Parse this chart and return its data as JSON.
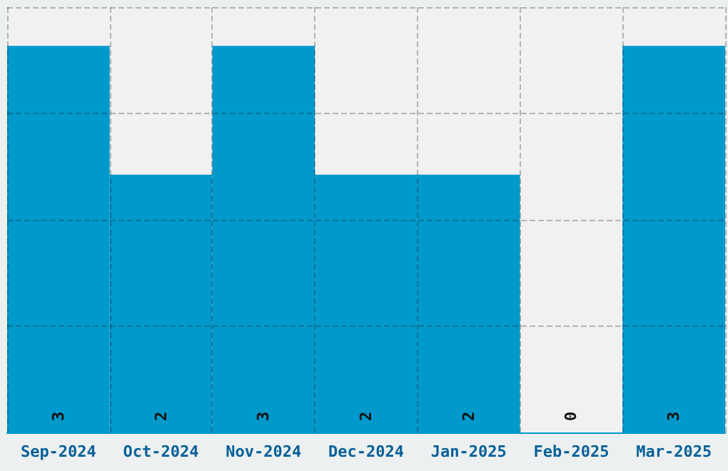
{
  "chart_data": {
    "type": "bar",
    "categories": [
      "Sep-2024",
      "Oct-2024",
      "Nov-2024",
      "Dec-2024",
      "Jan-2025",
      "Feb-2025",
      "Mar-2025"
    ],
    "values": [
      3,
      2,
      3,
      2,
      2,
      0,
      3
    ],
    "color": "#0099cc",
    "ylim": [
      0,
      3.3
    ],
    "yticks": [
      {
        "value": 0,
        "label": null
      },
      {
        "value": 0.825,
        "label": null
      },
      {
        "value": 1.65,
        "label": null
      },
      {
        "value": 2.475,
        "label": null
      },
      {
        "value": 3.3,
        "label": null
      }
    ],
    "tick_labels": "x",
    "grid": true,
    "data_labels": true
  }
}
